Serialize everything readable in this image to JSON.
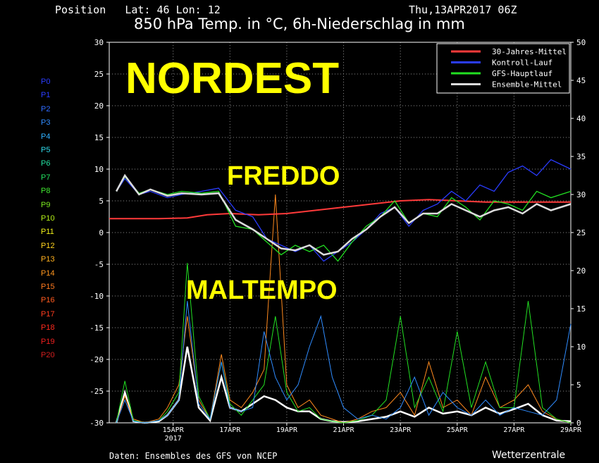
{
  "header": {
    "position_label": "Position   Lat: 46 Lon: 12",
    "date_label": "Thu,13APR2017 06Z",
    "title": "850 hPa Temp. in °C, 6h-Niederschlag in mm"
  },
  "footer": {
    "source": "Daten: Ensembles des GFS von NCEP",
    "brand": "Wetterzentrale"
  },
  "overlay_text": {
    "main": "NORDEST",
    "cold": "FREDDO",
    "bad_weather": "MALTEMPO"
  },
  "members": [
    {
      "label": "P0",
      "color": "#2a3cff"
    },
    {
      "label": "P1",
      "color": "#2a3cff"
    },
    {
      "label": "P2",
      "color": "#2f6bff"
    },
    {
      "label": "P3",
      "color": "#2f8cff"
    },
    {
      "label": "P4",
      "color": "#2fb0ff"
    },
    {
      "label": "P5",
      "color": "#2fd8e8"
    },
    {
      "label": "P6",
      "color": "#23e0a0"
    },
    {
      "label": "P7",
      "color": "#23e060"
    },
    {
      "label": "P8",
      "color": "#40e830"
    },
    {
      "label": "P9",
      "color": "#7ae820"
    },
    {
      "label": "P10",
      "color": "#b4f018"
    },
    {
      "label": "P11",
      "color": "#f0f018"
    },
    {
      "label": "P12",
      "color": "#ffd21e"
    },
    {
      "label": "P13",
      "color": "#ffb01e"
    },
    {
      "label": "P14",
      "color": "#ff961e"
    },
    {
      "label": "P15",
      "color": "#ff7a1e"
    },
    {
      "label": "P16",
      "color": "#ff5a1e"
    },
    {
      "label": "P17",
      "color": "#ff3c1e"
    },
    {
      "label": "P18",
      "color": "#ff2a1e"
    },
    {
      "label": "P19",
      "color": "#ee1e1e"
    },
    {
      "label": "P20",
      "color": "#d21e1e"
    }
  ],
  "chart_data": {
    "type": "line",
    "title": "850 hPa Temp. in °C, 6h-Niederschlag in mm",
    "x_ticks": [
      {
        "day": 2.0,
        "label": "15APR",
        "sub": "2017"
      },
      {
        "day": 4.0,
        "label": "17APR",
        "sub": ""
      },
      {
        "day": 6.0,
        "label": "19APR",
        "sub": ""
      },
      {
        "day": 8.0,
        "label": "21APR",
        "sub": ""
      },
      {
        "day": 10.0,
        "label": "23APR",
        "sub": ""
      },
      {
        "day": 12.0,
        "label": "25APR",
        "sub": ""
      },
      {
        "day": 14.0,
        "label": "27APR",
        "sub": ""
      },
      {
        "day": 16.0,
        "label": "29APR",
        "sub": ""
      }
    ],
    "xlim_days": [
      -0.25,
      16.0
    ],
    "ylim_left": [
      -30,
      30
    ],
    "ylim_right": [
      0,
      50
    ],
    "y_ticks_left": [
      -30,
      -25,
      -20,
      -15,
      -10,
      -5,
      0,
      5,
      10,
      15,
      20,
      25,
      30
    ],
    "y_ticks_right": [
      0,
      5,
      10,
      15,
      20,
      25,
      30,
      35,
      40,
      45,
      50
    ],
    "grid": true,
    "legend_position": "top-right",
    "series": [
      {
        "name": "30-Jahres-Mittel",
        "color": "#ff3a3a",
        "x": [
          -0.25,
          1.5,
          2.5,
          3.2,
          4.0,
          5.0,
          6.0,
          7.0,
          8.0,
          9.0,
          10.0,
          11.0,
          12.0,
          13.0,
          14.0,
          15.0,
          16.0
        ],
        "y": [
          2.2,
          2.2,
          2.3,
          2.8,
          3.0,
          2.8,
          3.0,
          3.5,
          4.0,
          4.5,
          5.0,
          5.2,
          5.0,
          4.8,
          4.8,
          4.8,
          4.8
        ]
      },
      {
        "name": "Kontroll-Lauf",
        "color": "#2a3cff",
        "x": [
          0.0,
          0.3,
          0.8,
          1.2,
          1.8,
          2.3,
          3.0,
          3.6,
          4.2,
          4.8,
          5.3,
          5.8,
          6.3,
          6.8,
          7.3,
          7.8,
          8.3,
          8.8,
          9.3,
          9.8,
          10.3,
          10.8,
          11.3,
          11.8,
          12.3,
          12.8,
          13.3,
          13.8,
          14.3,
          14.8,
          15.3,
          16.0
        ],
        "y": [
          6.5,
          8.5,
          6.0,
          6.5,
          5.5,
          6.0,
          6.5,
          7.0,
          3.5,
          2.5,
          -1.0,
          -2.0,
          -3.0,
          -2.0,
          -4.5,
          -3.0,
          -1.5,
          0.5,
          3.0,
          4.0,
          1.0,
          3.5,
          4.5,
          6.5,
          5.0,
          7.5,
          6.5,
          9.5,
          10.5,
          9.0,
          11.5,
          10.0
        ]
      },
      {
        "name": "GFS-Hauptlauf",
        "color": "#22e022",
        "x": [
          0.0,
          0.3,
          0.8,
          1.2,
          1.8,
          2.3,
          3.0,
          3.6,
          4.2,
          4.8,
          5.3,
          5.8,
          6.3,
          6.8,
          7.3,
          7.8,
          8.3,
          8.8,
          9.3,
          9.8,
          10.3,
          10.8,
          11.3,
          11.8,
          12.3,
          12.8,
          13.3,
          13.8,
          14.3,
          14.8,
          15.3,
          16.0
        ],
        "y": [
          6.5,
          8.8,
          6.2,
          6.8,
          6.0,
          6.5,
          6.2,
          6.5,
          1.0,
          0.5,
          -1.5,
          -3.5,
          -2.0,
          -3.0,
          -2.0,
          -4.5,
          -1.5,
          1.0,
          2.5,
          5.0,
          1.5,
          3.0,
          2.5,
          5.5,
          4.0,
          2.0,
          5.0,
          4.5,
          3.5,
          6.5,
          5.5,
          6.5
        ]
      },
      {
        "name": "Ensemble-Mittel",
        "color": "#dcdcdc",
        "x": [
          0.0,
          0.3,
          0.8,
          1.2,
          1.8,
          2.3,
          3.0,
          3.6,
          4.2,
          4.8,
          5.3,
          5.8,
          6.3,
          6.8,
          7.3,
          7.8,
          8.3,
          8.8,
          9.3,
          9.8,
          10.3,
          10.8,
          11.3,
          11.8,
          12.3,
          12.8,
          13.3,
          13.8,
          14.3,
          14.8,
          15.3,
          16.0
        ],
        "y": [
          6.5,
          9.0,
          6.0,
          6.8,
          5.8,
          6.2,
          6.0,
          6.2,
          2.0,
          0.5,
          -1.0,
          -2.5,
          -2.8,
          -2.0,
          -3.5,
          -3.0,
          -1.0,
          0.5,
          2.5,
          4.0,
          1.5,
          3.0,
          3.0,
          4.5,
          3.5,
          2.5,
          3.5,
          4.0,
          3.0,
          4.5,
          3.5,
          4.5
        ]
      }
    ],
    "precip_series": [
      {
        "name": "Ensemble-Mittel",
        "color": "#ffffff",
        "x": [
          0.0,
          0.3,
          0.6,
          1.0,
          1.5,
          1.8,
          2.2,
          2.5,
          2.9,
          3.3,
          3.7,
          4.0,
          4.4,
          4.8,
          5.2,
          5.6,
          6.0,
          6.4,
          6.8,
          7.2,
          7.6,
          8.0,
          8.5,
          9.0,
          9.5,
          10.0,
          10.5,
          11.0,
          11.5,
          12.0,
          12.5,
          13.0,
          13.5,
          14.0,
          14.5,
          15.0,
          15.5,
          16.0
        ],
        "y": [
          0.0,
          4.0,
          0.2,
          0.0,
          0.2,
          1.0,
          3.0,
          10.0,
          2.0,
          0.3,
          6.0,
          2.0,
          1.5,
          2.5,
          3.5,
          3.0,
          2.0,
          1.5,
          1.5,
          0.5,
          0.2,
          0.1,
          0.2,
          0.5,
          0.8,
          1.5,
          0.8,
          2.0,
          1.2,
          1.5,
          1.0,
          2.0,
          1.2,
          1.8,
          2.5,
          1.0,
          0.3,
          0.2
        ]
      },
      {
        "name": "",
        "color": "#ff8a1e",
        "x": [
          0.0,
          0.3,
          0.6,
          1.0,
          1.5,
          1.8,
          2.2,
          2.5,
          2.9,
          3.3,
          3.7,
          4.0,
          4.4,
          4.8,
          5.2,
          5.6,
          6.0,
          6.4,
          6.8,
          7.2,
          7.6,
          8.0,
          8.5,
          9.0,
          9.5,
          10.0,
          10.5,
          11.0,
          11.5,
          12.0,
          12.5,
          13.0,
          13.5,
          14.0,
          14.5,
          15.0,
          15.5,
          16.0
        ],
        "y": [
          0.0,
          3.5,
          0.5,
          0.0,
          0.5,
          2.0,
          5.0,
          14.0,
          3.0,
          0.5,
          9.0,
          3.0,
          2.0,
          4.0,
          7.0,
          30.0,
          5.0,
          2.0,
          3.0,
          1.0,
          0.5,
          0.0,
          0.5,
          1.5,
          2.0,
          4.0,
          1.0,
          8.0,
          2.0,
          3.0,
          1.0,
          6.0,
          2.0,
          3.0,
          5.0,
          1.5,
          0.5,
          0.0
        ]
      },
      {
        "name": "",
        "color": "#22e022",
        "x": [
          0.0,
          0.3,
          0.6,
          1.0,
          1.5,
          1.8,
          2.2,
          2.5,
          2.9,
          3.3,
          3.7,
          4.0,
          4.4,
          4.8,
          5.2,
          5.6,
          6.0,
          6.4,
          6.8,
          7.2,
          7.6,
          8.0,
          8.5,
          9.0,
          9.5,
          10.0,
          10.5,
          11.0,
          11.5,
          12.0,
          12.5,
          13.0,
          13.5,
          14.0,
          14.5,
          15.0,
          15.5,
          16.0
        ],
        "y": [
          0.0,
          5.5,
          0.3,
          0.0,
          0.3,
          1.5,
          4.0,
          21.0,
          3.5,
          0.5,
          8.0,
          2.5,
          1.0,
          3.0,
          5.0,
          14.0,
          4.0,
          1.5,
          2.0,
          0.5,
          0.2,
          0.0,
          0.3,
          1.0,
          3.0,
          14.0,
          2.0,
          6.0,
          1.5,
          12.0,
          2.0,
          8.0,
          2.0,
          2.0,
          16.0,
          2.0,
          0.5,
          0.0
        ]
      },
      {
        "name": "",
        "color": "#2f8cff",
        "x": [
          0.0,
          0.3,
          0.6,
          1.0,
          1.5,
          1.8,
          2.2,
          2.5,
          2.9,
          3.3,
          3.7,
          4.0,
          4.4,
          4.8,
          5.2,
          5.6,
          6.0,
          6.4,
          6.8,
          7.2,
          7.6,
          8.0,
          8.5,
          9.0,
          9.5,
          10.0,
          10.5,
          11.0,
          11.5,
          12.0,
          12.5,
          13.0,
          13.5,
          14.0,
          14.5,
          15.0,
          15.5,
          16.0
        ],
        "y": [
          0.0,
          3.0,
          0.2,
          0.0,
          0.3,
          1.0,
          3.0,
          16.0,
          2.5,
          0.5,
          8.0,
          2.0,
          1.5,
          2.0,
          12.0,
          6.0,
          3.0,
          5.0,
          10.0,
          14.0,
          6.0,
          2.0,
          0.5,
          1.0,
          0.5,
          2.0,
          6.0,
          1.0,
          4.0,
          2.0,
          1.0,
          3.0,
          1.0,
          2.0,
          1.5,
          1.0,
          3.0,
          13.0
        ]
      }
    ]
  }
}
